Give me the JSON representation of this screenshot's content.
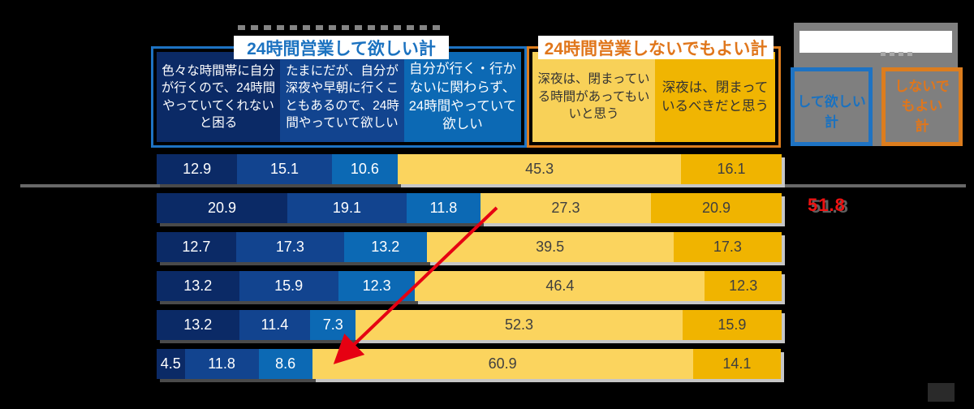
{
  "header": {
    "want_group_label": "24時間営業して欲しい計",
    "no_need_group_label": "24時間営業しないでもよい計"
  },
  "legend_panel": {
    "want_total_box": "して欲しい\n計",
    "no_need_total_box": "しないで\nもよい\n計"
  },
  "colors": {
    "background": "#000000",
    "blue_group_border": "#1E73C3",
    "orange_group_border": "#DD7D1E",
    "blue_label_text": "#1B72C0",
    "orange_label_text": "#E0761B",
    "panel_gray": "#7F7F7F",
    "red_accent": "#E60012"
  },
  "chart_data": {
    "type": "bar",
    "subtype": "horizontal-stacked-100percent",
    "orientation": "horizontal",
    "xlim": [
      0,
      100
    ],
    "grid": false,
    "legend_position": "top-headers",
    "categories": [
      "",
      "",
      "",
      "",
      "",
      ""
    ],
    "series": [
      {
        "name": "色々な時間帯に自分が行くので、24時間やっていてくれないと困る",
        "color": "#0B2A66",
        "text_color": "#ffffff",
        "values": [
          12.9,
          20.9,
          12.7,
          13.2,
          13.2,
          4.5
        ]
      },
      {
        "name": "たまにだが、自分が深夜や早朝に行くこともあるので、24時間やっていて欲しい",
        "color": "#12448F",
        "text_color": "#ffffff",
        "values": [
          15.1,
          19.1,
          17.3,
          15.9,
          11.4,
          11.8
        ]
      },
      {
        "name": "自分が行く・行かないに関わらず、24時間やっていて欲しい",
        "color": "#0C69B4",
        "text_color": "#ffffff",
        "values": [
          10.6,
          11.8,
          13.2,
          12.3,
          7.3,
          8.6
        ]
      },
      {
        "name": "深夜は、閉まっている時間があってもいいと思う",
        "color": "#FBD45E",
        "text_color": "#3f3f3f",
        "values": [
          45.3,
          27.3,
          39.5,
          46.4,
          52.3,
          60.9
        ]
      },
      {
        "name": "深夜は、閉まっているべきだと思う",
        "color": "#F0B400",
        "text_color": "#3f3f3f",
        "values": [
          16.1,
          20.9,
          17.3,
          12.3,
          15.9,
          14.1
        ]
      }
    ],
    "annotations": [
      {
        "text": "51.8",
        "color": "#ED1111",
        "row_index": 1,
        "meaning": "sum of the three blue segments in row 2"
      }
    ]
  }
}
